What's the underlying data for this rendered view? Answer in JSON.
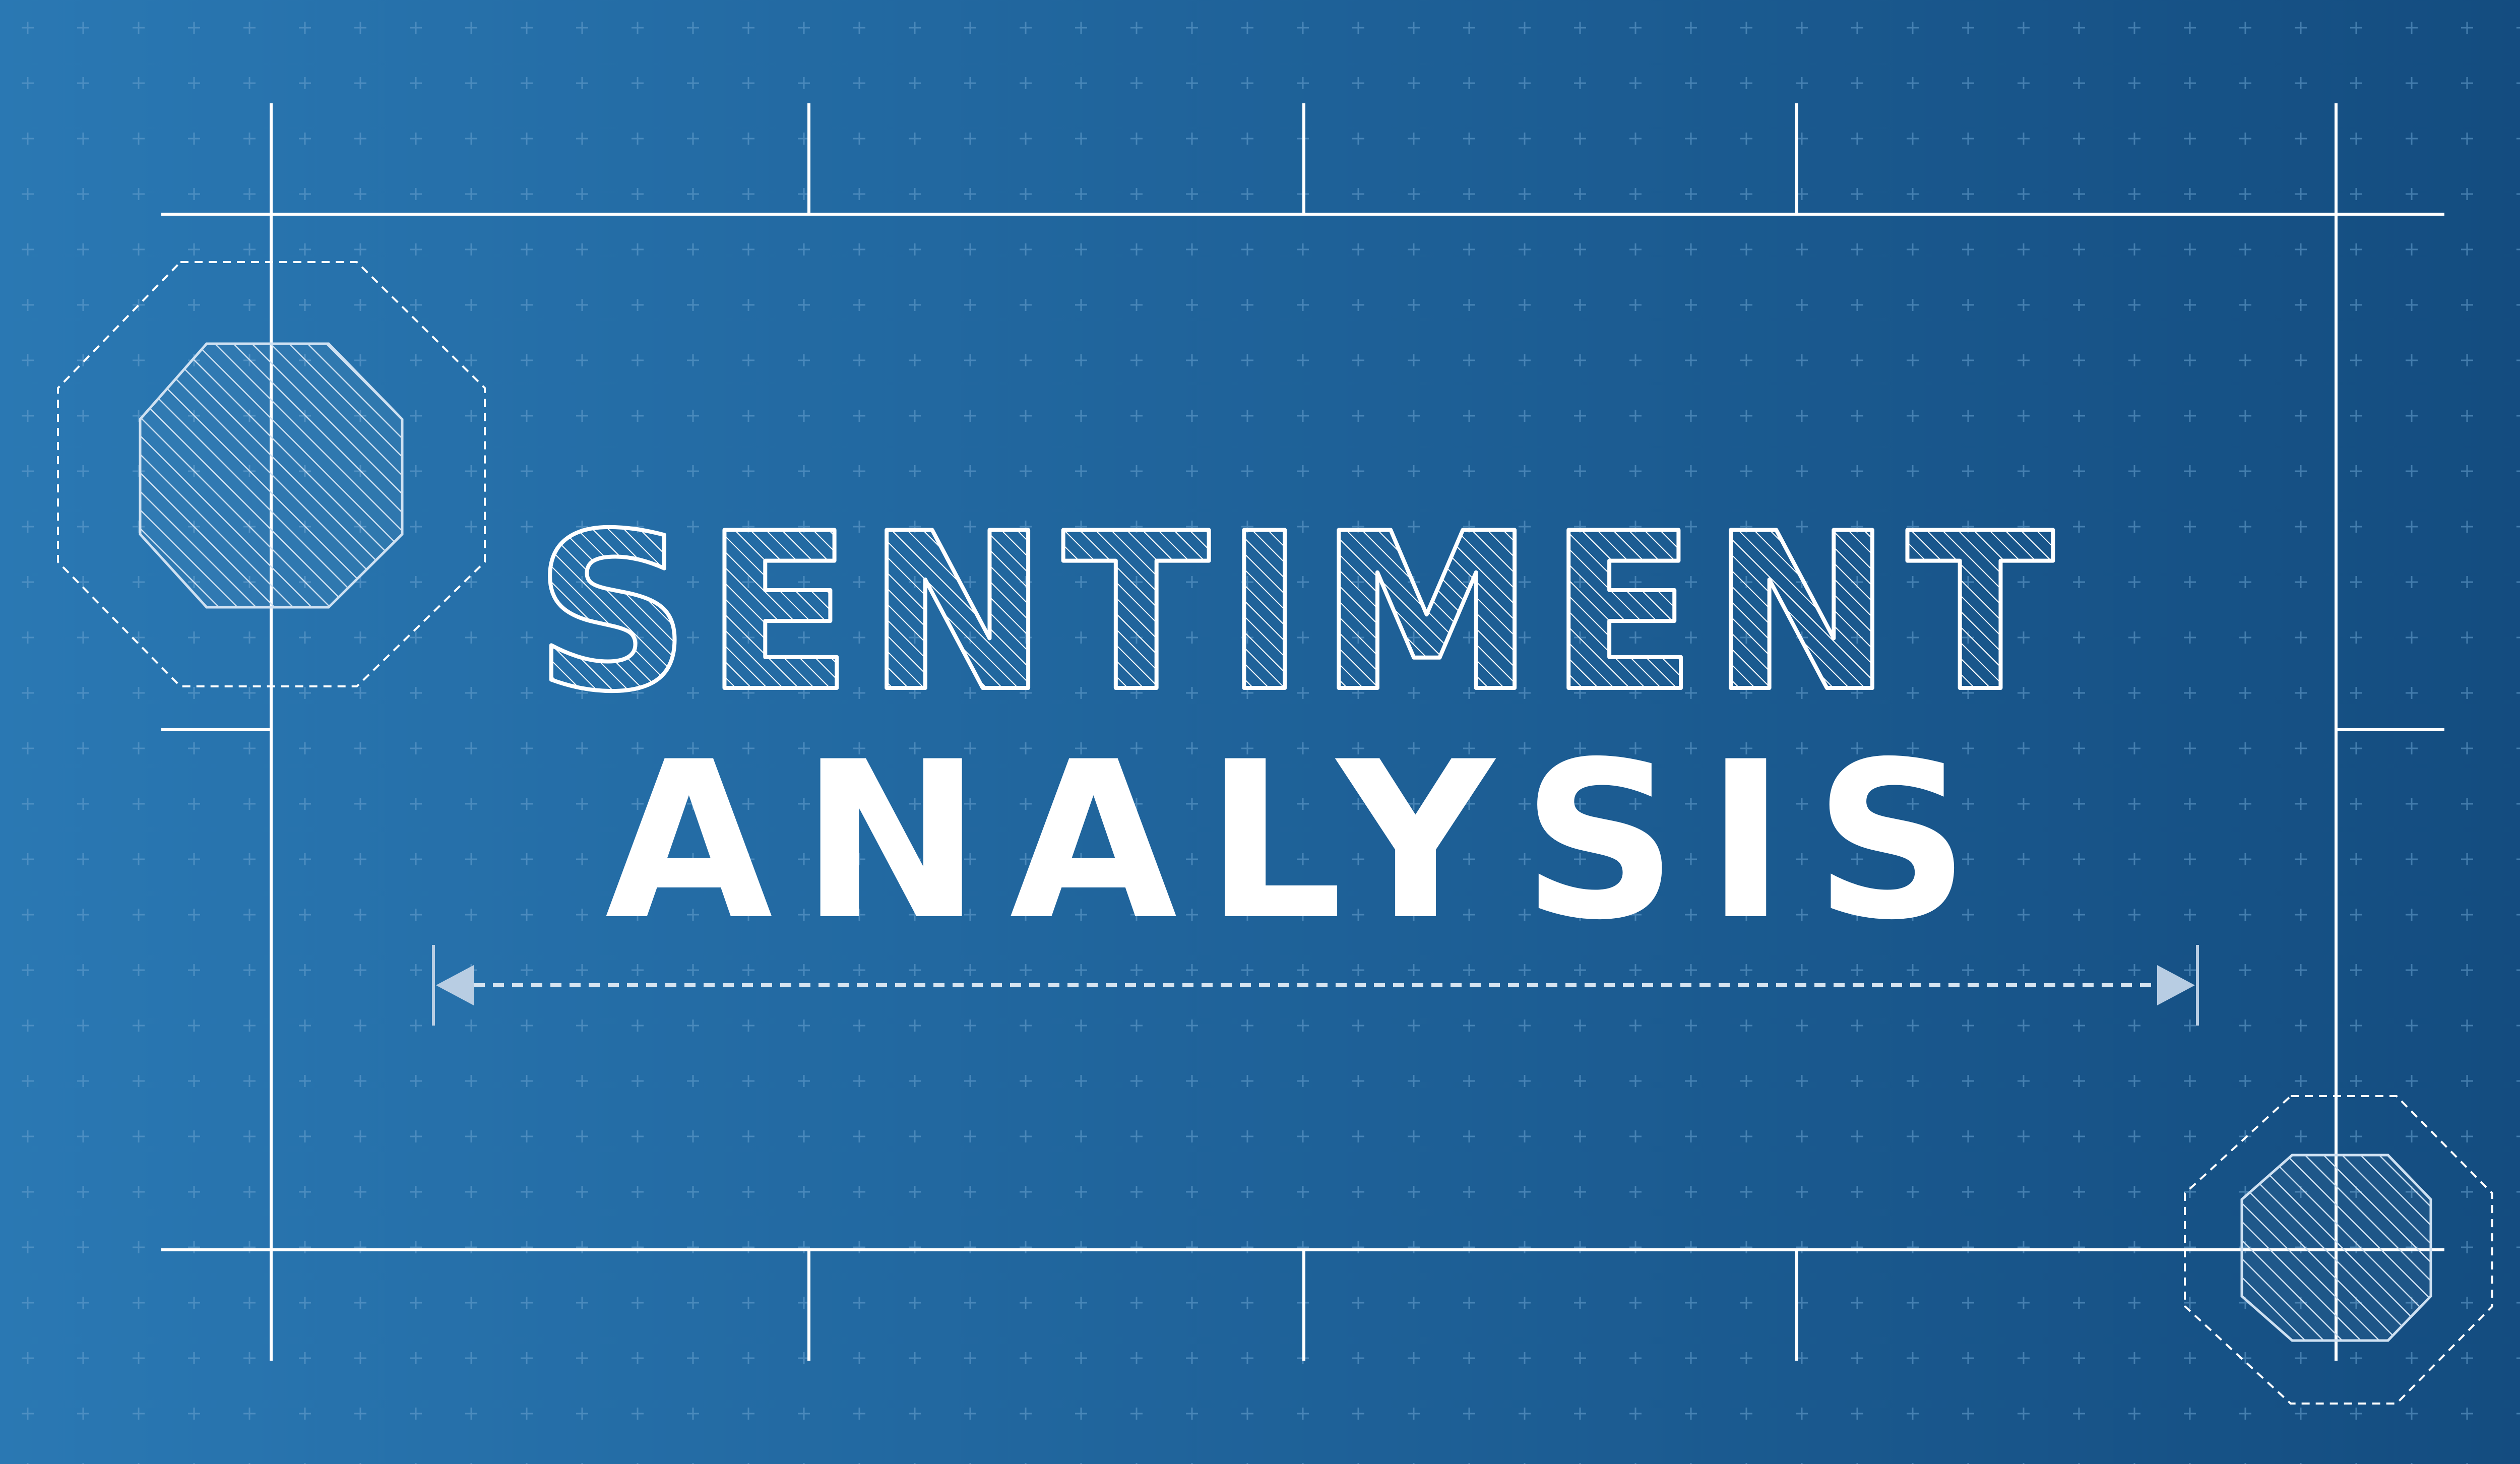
{
  "title": {
    "line1": "SENTIMENT",
    "line2": "ANALYSIS"
  },
  "colors": {
    "background_left": "#2a78b3",
    "background_right": "#134b7e",
    "line": "#ffffff",
    "grid_mark": "#6aa2d0",
    "hatch": "#cfe1f2",
    "arrow": "#b8cde3"
  },
  "decorations": {
    "grid_marks": "plus-glyphs",
    "left_shape": "hatched-octagon",
    "right_shape": "hatched-octagon",
    "dimension_line": "dashed-double-arrow"
  }
}
